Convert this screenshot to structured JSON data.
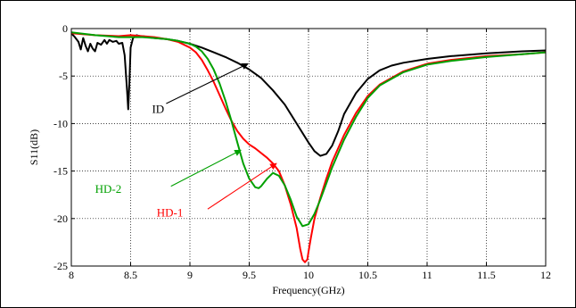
{
  "chart_data": {
    "type": "line",
    "title": "",
    "xlabel": "Frequency(GHz)",
    "ylabel": "S11(dB)",
    "xlim": [
      8,
      12
    ],
    "ylim": [
      -25,
      0
    ],
    "xticks": [
      8,
      8.5,
      9,
      9.5,
      10,
      10.5,
      11,
      11.5,
      12
    ],
    "xtick_labels": [
      "8",
      "8.5",
      "9",
      "9.5",
      "10",
      "10.5",
      "11",
      "11.5",
      "12"
    ],
    "yticks": [
      0,
      -5,
      -10,
      -15,
      -20,
      -25
    ],
    "ytick_labels": [
      "0",
      "-5",
      "-10",
      "-15",
      "-20",
      "-25"
    ],
    "grid": true,
    "grid_style": "dotted",
    "legend": "none",
    "series": [
      {
        "name": "ID",
        "color": "#000000",
        "x": [
          8.0,
          8.03,
          8.06,
          8.08,
          8.1,
          8.12,
          8.14,
          8.16,
          8.18,
          8.2,
          8.22,
          8.25,
          8.28,
          8.3,
          8.32,
          8.35,
          8.38,
          8.4,
          8.43,
          8.45,
          8.47,
          8.48,
          8.49,
          8.5,
          8.52,
          8.55,
          8.58,
          8.6,
          8.65,
          8.7,
          8.8,
          8.9,
          9.0,
          9.1,
          9.2,
          9.3,
          9.4,
          9.5,
          9.6,
          9.7,
          9.8,
          9.9,
          10.0,
          10.05,
          10.1,
          10.15,
          10.2,
          10.25,
          10.3,
          10.4,
          10.5,
          10.6,
          10.7,
          10.8,
          11.0,
          11.2,
          11.5,
          11.8,
          12.0
        ],
        "values": [
          -0.5,
          -0.9,
          -1.4,
          -2.2,
          -1.0,
          -1.8,
          -2.4,
          -1.6,
          -2.1,
          -2.4,
          -1.5,
          -1.7,
          -1.2,
          -1.6,
          -1.2,
          -1.4,
          -1.3,
          -1.6,
          -1.5,
          -2.8,
          -6.5,
          -8.5,
          -5.5,
          -2.0,
          -1.0,
          -0.7,
          -0.8,
          -0.8,
          -0.9,
          -1.0,
          -1.1,
          -1.3,
          -1.6,
          -2.0,
          -2.5,
          -3.0,
          -3.6,
          -4.3,
          -5.2,
          -6.5,
          -8.0,
          -10.0,
          -12.0,
          -12.9,
          -13.4,
          -13.2,
          -12.3,
          -10.8,
          -9.0,
          -6.8,
          -5.3,
          -4.4,
          -3.9,
          -3.6,
          -3.2,
          -2.9,
          -2.6,
          -2.4,
          -2.3
        ]
      },
      {
        "name": "HD-1",
        "color": "#ff0000",
        "x": [
          8.0,
          8.2,
          8.4,
          8.5,
          8.6,
          8.7,
          8.8,
          8.9,
          9.0,
          9.05,
          9.1,
          9.15,
          9.2,
          9.25,
          9.3,
          9.35,
          9.4,
          9.45,
          9.5,
          9.55,
          9.6,
          9.65,
          9.7,
          9.75,
          9.8,
          9.85,
          9.9,
          9.93,
          9.95,
          9.97,
          9.99,
          10.0,
          10.02,
          10.05,
          10.1,
          10.15,
          10.2,
          10.3,
          10.4,
          10.5,
          10.6,
          10.8,
          11.0,
          11.2,
          11.5,
          11.8,
          12.0
        ],
        "values": [
          -0.5,
          -0.7,
          -0.8,
          -0.7,
          -0.8,
          -0.9,
          -1.1,
          -1.4,
          -2.0,
          -2.5,
          -3.3,
          -4.4,
          -5.6,
          -7.0,
          -8.4,
          -9.7,
          -10.8,
          -11.6,
          -12.2,
          -12.6,
          -13.1,
          -13.6,
          -14.2,
          -15.0,
          -16.5,
          -18.5,
          -21.0,
          -23.2,
          -24.3,
          -24.6,
          -24.3,
          -23.5,
          -22.0,
          -20.0,
          -17.8,
          -15.8,
          -14.0,
          -11.2,
          -8.9,
          -7.1,
          -5.9,
          -4.5,
          -3.7,
          -3.3,
          -2.9,
          -2.7,
          -2.5
        ]
      },
      {
        "name": "HD-2",
        "color": "#00a000",
        "x": [
          8.0,
          8.2,
          8.4,
          8.5,
          8.6,
          8.7,
          8.8,
          8.9,
          9.0,
          9.05,
          9.1,
          9.15,
          9.2,
          9.25,
          9.3,
          9.35,
          9.4,
          9.45,
          9.5,
          9.55,
          9.58,
          9.6,
          9.65,
          9.7,
          9.75,
          9.8,
          9.85,
          9.9,
          9.95,
          10.0,
          10.05,
          10.1,
          10.15,
          10.2,
          10.3,
          10.4,
          10.5,
          10.6,
          10.8,
          11.0,
          11.2,
          11.5,
          11.8,
          12.0
        ],
        "values": [
          -0.4,
          -0.7,
          -0.9,
          -0.9,
          -0.9,
          -1.0,
          -1.1,
          -1.3,
          -1.6,
          -1.9,
          -2.4,
          -3.2,
          -4.3,
          -5.8,
          -7.6,
          -9.7,
          -12.0,
          -14.2,
          -15.8,
          -16.7,
          -16.8,
          -16.6,
          -15.8,
          -15.2,
          -15.5,
          -16.5,
          -18.0,
          -19.8,
          -20.8,
          -20.6,
          -19.5,
          -18.0,
          -16.3,
          -14.6,
          -11.7,
          -9.3,
          -7.3,
          -6.0,
          -4.6,
          -3.8,
          -3.4,
          -3.0,
          -2.7,
          -2.5
        ]
      }
    ],
    "annotations": [
      {
        "text": "ID",
        "color": "#000000",
        "label_at": [
          8.68,
          -8.9
        ],
        "arrow_from": [
          8.8,
          -7.9
        ],
        "arrow_to": [
          9.49,
          -3.7
        ]
      },
      {
        "text": "HD-2",
        "color": "#00a000",
        "label_at": [
          8.2,
          -17.3
        ],
        "arrow_from": [
          8.84,
          -16.6
        ],
        "arrow_to": [
          9.43,
          -12.8
        ]
      },
      {
        "text": "HD-1",
        "color": "#ff0000",
        "label_at": [
          8.72,
          -19.8
        ],
        "arrow_from": [
          9.15,
          -19.0
        ],
        "arrow_to": [
          9.73,
          -14.2
        ]
      }
    ]
  }
}
